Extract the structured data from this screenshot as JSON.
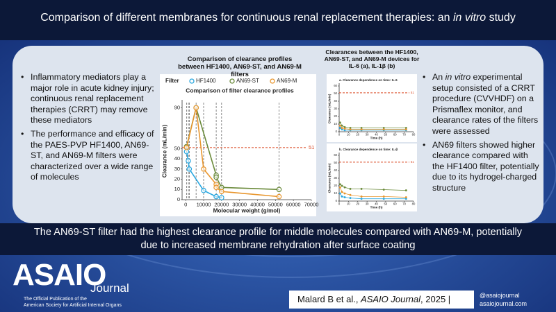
{
  "header": {
    "title": [
      "Comparison of different membranes for continuous renal replacement therapies: an ",
      "in vitro",
      " study"
    ]
  },
  "left_bullets": [
    "Inflammatory mediators play a major role in acute kidney injury; continuous renal replacement therapies (CRRT) may remove these mediators",
    "The performance and efficacy of the PAES-PVP HF1400, AN69-ST, and AN69-M filters were characterized over a wide range of molecules"
  ],
  "right_bullets": [
    [
      "An ",
      "in vitro",
      " experimental setup consisted of a CRRT procedure (CVVHDF) on a Prismaflex monitor, and clearance rates of the filters were assessed"
    ],
    [
      "AN69 filters showed higher clearance compared with the HF1400 filter, potentially due to its hydrogel-charged structure"
    ]
  ],
  "center_heading": "Comparison of clearance profiles between HF1400, AN69-ST, and AN69-M filters",
  "right_heading": "Clearances between the HF1400, AN69-ST, and AN69-M devices for IL-6 (a), IL-1β (b)",
  "conclusion": "The AN69-ST filter had the highest clearance profile for middle molecules compared with AN69-M, potentially due to increased membrane rehydration after surface coating",
  "logo": {
    "name": "ASAIO",
    "sub": "Journal",
    "line1": "The Official Publication of the",
    "line2": "American Society for Artificial Internal Organs"
  },
  "citation": [
    "Malard B et al., ",
    "ASAIO Journal",
    ", 2025 |"
  ],
  "social": [
    "@asaiojournal",
    "asaiojournal.com"
  ],
  "chart_data": [
    {
      "type": "scatter",
      "title": "Comparison of filter clearance profiles",
      "legend_title": "Filter",
      "x_label": "Molecular weight (g/mol)",
      "y_label": "Clearance (mL/min)",
      "xlim": [
        -2000,
        70000
      ],
      "xticks": [
        0,
        10000,
        20000,
        30000,
        40000,
        50000,
        60000,
        70000
      ],
      "ylim": [
        0,
        95
      ],
      "yticks": [
        0,
        10,
        20,
        30,
        40,
        50,
        90
      ],
      "refline": 51,
      "series": [
        {
          "name": "HF1400",
          "color": "#2aa7df",
          "x": [
            500,
            1500,
            2000,
            10000,
            17000,
            20000
          ],
          "values": [
            47,
            38,
            30,
            9,
            3,
            2
          ]
        },
        {
          "name": "AN69-ST",
          "color": "#6a8a3a",
          "x": [
            500,
            5800,
            17000,
            17000,
            20000,
            52000
          ],
          "values": [
            52,
            90,
            24,
            22,
            12,
            10
          ]
        },
        {
          "name": "AN69-M",
          "color": "#e8962e",
          "x": [
            500,
            5800,
            10000,
            17000,
            17000,
            20000,
            52000
          ],
          "values": [
            51,
            90,
            30,
            15,
            12,
            8,
            3
          ]
        }
      ]
    },
    {
      "type": "line",
      "title": "a. Clearance dependence on time: IL-6",
      "x_label": "Time (h)",
      "y_label": "Clearance (mL/min)",
      "xlim": [
        0,
        80
      ],
      "xticks": [
        0,
        10,
        20,
        30,
        40,
        50,
        60,
        70,
        80
      ],
      "ylim": [
        0,
        60
      ],
      "yticks": [
        0,
        10,
        20,
        30,
        40,
        50,
        60
      ],
      "refline": 51,
      "series": [
        {
          "name": "HF1400",
          "color": "#2aa7df",
          "x": [
            1,
            3,
            6,
            12,
            24,
            48,
            72
          ],
          "values": [
            5,
            3,
            2,
            2,
            2,
            2,
            2
          ]
        },
        {
          "name": "AN69-ST",
          "color": "#6a8a3a",
          "x": [
            1,
            3,
            6,
            12,
            24,
            48,
            72
          ],
          "values": [
            12,
            8,
            6,
            5,
            5,
            5,
            5
          ]
        },
        {
          "name": "AN69-M",
          "color": "#e8962e",
          "x": [
            1,
            3,
            6,
            12,
            24,
            48,
            72
          ],
          "values": [
            8,
            5,
            4,
            3,
            3,
            3,
            3
          ]
        }
      ]
    },
    {
      "type": "line",
      "title": "b. Clearance dependence on time: IL-β",
      "x_label": "Time (h)",
      "y_label": "Clearance (mL/min)",
      "xlim": [
        0,
        80
      ],
      "xticks": [
        0,
        10,
        20,
        30,
        40,
        50,
        60,
        70,
        80
      ],
      "ylim": [
        0,
        60
      ],
      "yticks": [
        0,
        10,
        20,
        30,
        40,
        50,
        60
      ],
      "refline": 51,
      "series": [
        {
          "name": "HF1400",
          "color": "#2aa7df",
          "x": [
            1,
            3,
            6,
            12,
            24,
            48,
            72
          ],
          "values": [
            10,
            6,
            5,
            4,
            3,
            3,
            3
          ]
        },
        {
          "name": "AN69-ST",
          "color": "#6a8a3a",
          "x": [
            1,
            3,
            6,
            12,
            24,
            48,
            72
          ],
          "values": [
            22,
            20,
            18,
            16,
            16,
            15,
            14
          ]
        },
        {
          "name": "AN69-M",
          "color": "#e8962e",
          "x": [
            1,
            3,
            6,
            12,
            24,
            48,
            72
          ],
          "values": [
            18,
            12,
            10,
            8,
            6,
            6,
            5
          ]
        }
      ]
    }
  ]
}
